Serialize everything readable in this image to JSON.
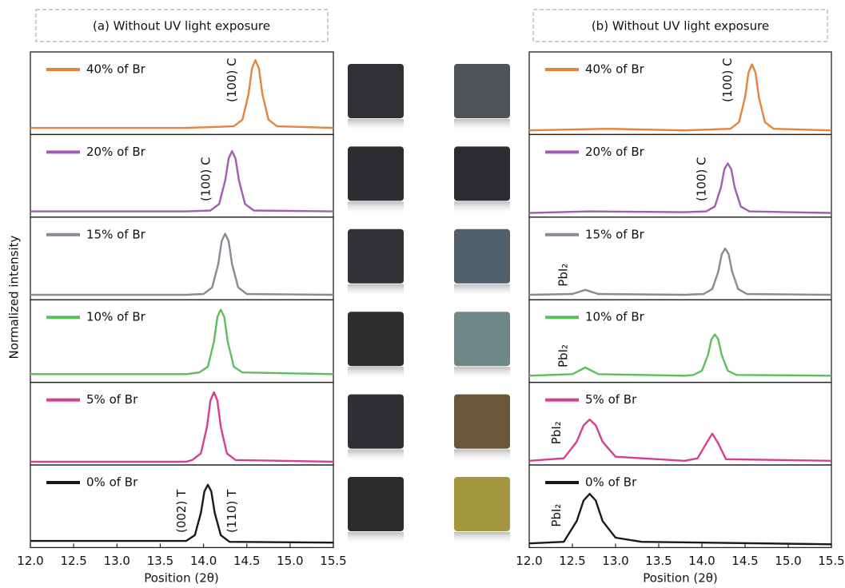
{
  "chart_data": [
    {
      "type": "line",
      "title": "(a) Without UV light exposure",
      "xlabel": "Position (2θ)",
      "ylabel": "Normalized intensity",
      "xlim": [
        12,
        15.5
      ],
      "xticks": [
        {
          "value": 12,
          "label": "12.0"
        },
        12.5,
        {
          "value": 13,
          "label": "13.0"
        },
        13.5,
        {
          "value": 14,
          "label": "14.0"
        },
        14.5,
        {
          "value": 15,
          "label": "15.0"
        },
        15.5
      ],
      "ylim": [
        0,
        1
      ],
      "subplots": true,
      "series": [
        {
          "name": "40% of Br",
          "color": "#e8833a",
          "x": [
            12.0,
            13.0,
            13.8,
            14.35,
            14.45,
            14.52,
            14.56,
            14.6,
            14.64,
            14.68,
            14.75,
            14.85,
            15.5
          ],
          "values": [
            0.08,
            0.08,
            0.08,
            0.1,
            0.18,
            0.49,
            0.8,
            0.9,
            0.8,
            0.49,
            0.18,
            0.1,
            0.08
          ],
          "annotations": [
            {
              "text": "(100) C",
              "x": 14.33,
              "y": 0.66
            }
          ]
        },
        {
          "name": "20% of Br",
          "color": "#a25db3",
          "x": [
            12.0,
            13.0,
            13.8,
            14.08,
            14.18,
            14.25,
            14.29,
            14.33,
            14.37,
            14.41,
            14.48,
            14.58,
            15.5
          ],
          "values": [
            0.07,
            0.07,
            0.07,
            0.08,
            0.16,
            0.44,
            0.71,
            0.8,
            0.71,
            0.44,
            0.16,
            0.08,
            0.07
          ],
          "annotations": [
            {
              "text": "(100) C",
              "x": 14.03,
              "y": 0.46
            }
          ]
        },
        {
          "name": "15% of Br",
          "color": "#8a8a96",
          "x": [
            12.0,
            13.0,
            13.8,
            14.0,
            14.1,
            14.17,
            14.21,
            14.25,
            14.29,
            14.33,
            14.4,
            14.5,
            15.5
          ],
          "values": [
            0.06,
            0.06,
            0.06,
            0.07,
            0.15,
            0.43,
            0.71,
            0.8,
            0.71,
            0.43,
            0.15,
            0.07,
            0.06
          ]
        },
        {
          "name": "10% of Br",
          "color": "#5cbf5c",
          "x": [
            12.0,
            13.0,
            13.8,
            13.95,
            14.05,
            14.12,
            14.16,
            14.2,
            14.24,
            14.28,
            14.35,
            14.45,
            15.5
          ],
          "values": [
            0.1,
            0.1,
            0.1,
            0.12,
            0.19,
            0.49,
            0.79,
            0.88,
            0.79,
            0.49,
            0.19,
            0.12,
            0.1
          ]
        },
        {
          "name": "5% of Br",
          "color": "#d63f8f",
          "x": [
            12.0,
            13.0,
            13.8,
            13.87,
            13.97,
            14.04,
            14.08,
            14.12,
            14.16,
            14.2,
            14.27,
            14.37,
            15.5
          ],
          "values": [
            0.04,
            0.04,
            0.04,
            0.06,
            0.14,
            0.46,
            0.78,
            0.88,
            0.78,
            0.46,
            0.14,
            0.06,
            0.04
          ]
        },
        {
          "name": "0% of Br",
          "color": "#1a1a1a",
          "x": [
            12.0,
            13.0,
            13.7,
            13.8,
            13.9,
            13.97,
            14.01,
            14.05,
            14.09,
            14.13,
            14.2,
            14.3,
            15.5
          ],
          "values": [
            0.08,
            0.08,
            0.08,
            0.08,
            0.15,
            0.42,
            0.68,
            0.76,
            0.68,
            0.42,
            0.15,
            0.07,
            0.06
          ],
          "annotations": [
            {
              "text": "(002) T",
              "x": 13.75,
              "y": 0.44
            },
            {
              "text": "(110) T",
              "x": 14.33,
              "y": 0.44
            }
          ]
        }
      ]
    },
    {
      "type": "line",
      "title": "(b) Without UV light exposure",
      "xlabel": "Position (2θ)",
      "xlim": [
        12,
        15.5
      ],
      "xticks": [
        {
          "value": 12,
          "label": "12.0"
        },
        12.5,
        {
          "value": 13,
          "label": "13.0"
        },
        13.5,
        {
          "value": 14,
          "label": "14.0"
        },
        14.5,
        {
          "value": 15,
          "label": "15.0"
        },
        15.5
      ],
      "ylim": [
        0,
        1
      ],
      "subplots": true,
      "series": [
        {
          "name": "40% of Br",
          "color": "#e8833a",
          "x": [
            12.0,
            12.9,
            13.8,
            14.33,
            14.43,
            14.5,
            14.54,
            14.58,
            14.62,
            14.66,
            14.73,
            14.83,
            15.5
          ],
          "values": [
            0.05,
            0.07,
            0.05,
            0.07,
            0.15,
            0.45,
            0.75,
            0.85,
            0.75,
            0.45,
            0.15,
            0.07,
            0.05
          ],
          "annotations": [
            {
              "text": "(100) C",
              "x": 14.3,
              "y": 0.66
            }
          ]
        },
        {
          "name": "20% of Br",
          "color": "#a25db3",
          "x": [
            12.0,
            12.7,
            13.8,
            14.05,
            14.15,
            14.22,
            14.26,
            14.3,
            14.34,
            14.38,
            14.45,
            14.55,
            15.5
          ],
          "values": [
            0.05,
            0.07,
            0.06,
            0.07,
            0.13,
            0.36,
            0.58,
            0.65,
            0.58,
            0.36,
            0.13,
            0.07,
            0.05
          ],
          "annotations": [
            {
              "text": "(100) C",
              "x": 14.0,
              "y": 0.46
            }
          ]
        },
        {
          "name": "15% of Br",
          "color": "#8a8a96",
          "x": [
            12.0,
            12.5,
            12.65,
            12.8,
            13.8,
            14.02,
            14.12,
            14.19,
            14.23,
            14.27,
            14.31,
            14.35,
            14.42,
            14.52,
            15.5
          ],
          "values": [
            0.06,
            0.07,
            0.12,
            0.07,
            0.06,
            0.07,
            0.13,
            0.34,
            0.55,
            0.62,
            0.55,
            0.34,
            0.13,
            0.07,
            0.06
          ],
          "annotations": [
            {
              "text": "PbI₂",
              "x": 12.4,
              "y": 0.3
            }
          ]
        },
        {
          "name": "10% of Br",
          "color": "#5cbf5c",
          "x": [
            12.0,
            12.5,
            12.65,
            12.8,
            13.8,
            13.9,
            14.0,
            14.07,
            14.11,
            14.15,
            14.19,
            14.23,
            14.3,
            14.4,
            15.5
          ],
          "values": [
            0.08,
            0.1,
            0.18,
            0.1,
            0.08,
            0.09,
            0.14,
            0.33,
            0.52,
            0.58,
            0.52,
            0.33,
            0.14,
            0.09,
            0.08
          ],
          "annotations": [
            {
              "text": "PbI₂",
              "x": 12.4,
              "y": 0.32
            }
          ]
        },
        {
          "name": "5% of Br",
          "color": "#d63f8f",
          "x": [
            12.0,
            12.4,
            12.55,
            12.63,
            12.7,
            12.77,
            12.85,
            13.0,
            13.8,
            13.95,
            14.05,
            14.12,
            14.19,
            14.28,
            15.5
          ],
          "values": [
            0.05,
            0.08,
            0.28,
            0.48,
            0.55,
            0.48,
            0.28,
            0.1,
            0.05,
            0.08,
            0.26,
            0.38,
            0.26,
            0.07,
            0.05
          ],
          "annotations": [
            {
              "text": "PbI₂",
              "x": 12.32,
              "y": 0.39
            }
          ]
        },
        {
          "name": "0% of Br",
          "color": "#1a1a1a",
          "x": [
            12.0,
            12.4,
            12.55,
            12.63,
            12.7,
            12.77,
            12.85,
            13.0,
            13.3,
            15.5
          ],
          "values": [
            0.05,
            0.07,
            0.32,
            0.57,
            0.65,
            0.57,
            0.32,
            0.12,
            0.07,
            0.04
          ],
          "annotations": [
            {
              "text": "PbI₂",
              "x": 12.32,
              "y": 0.39
            }
          ]
        }
      ]
    }
  ]
}
